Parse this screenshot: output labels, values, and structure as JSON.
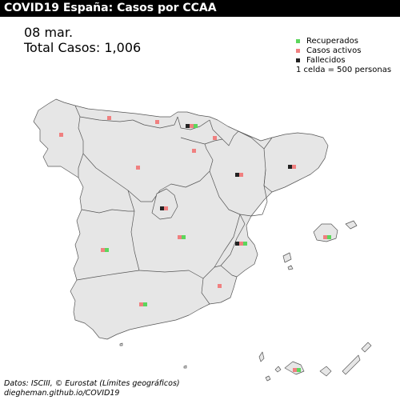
{
  "title": "COVID19 España: Casos por CCAA",
  "date": "08 mar.",
  "total": "Total Casos: 1,006",
  "legend": {
    "items": [
      {
        "label": "Recuperados",
        "color": "#5cd65c"
      },
      {
        "label": "Casos activos",
        "color": "#f08080"
      },
      {
        "label": "Fallecidos",
        "color": "#222222"
      }
    ],
    "note": "1 celda = 500 personas"
  },
  "credits": {
    "line1": "Datos: ISCIII, © Eurostat (Límites geográficos)",
    "line2": "diegheman.github.io/COVID19"
  },
  "map_style": {
    "fill": "#e6e6e6",
    "stroke": "#555555"
  },
  "regions": [
    {
      "name": "Galicia",
      "cells": [
        "active"
      ]
    },
    {
      "name": "Asturias",
      "cells": [
        "active"
      ]
    },
    {
      "name": "Cantabria",
      "cells": [
        "active"
      ]
    },
    {
      "name": "País Vasco",
      "cells": [
        "dead",
        "active",
        "recovered"
      ]
    },
    {
      "name": "Navarra",
      "cells": [
        "active"
      ]
    },
    {
      "name": "La Rioja",
      "cells": [
        "active"
      ]
    },
    {
      "name": "Castilla y León",
      "cells": [
        "active"
      ]
    },
    {
      "name": "Aragón",
      "cells": [
        "dead",
        "active"
      ]
    },
    {
      "name": "Cataluña",
      "cells": [
        "dead",
        "active"
      ]
    },
    {
      "name": "Madrid",
      "cells": [
        "dead",
        "active"
      ]
    },
    {
      "name": "Castilla-La Mancha",
      "cells": [
        "active",
        "recovered"
      ]
    },
    {
      "name": "Comunidad Valenciana",
      "cells": [
        "dead",
        "active",
        "recovered"
      ]
    },
    {
      "name": "Extremadura",
      "cells": [
        "active",
        "recovered"
      ]
    },
    {
      "name": "Murcia",
      "cells": [
        "active"
      ]
    },
    {
      "name": "Andalucía",
      "cells": [
        "active",
        "recovered"
      ]
    },
    {
      "name": "Islas Baleares",
      "cells": [
        "active",
        "recovered"
      ]
    },
    {
      "name": "Canarias",
      "cells": [
        "active",
        "recovered"
      ]
    }
  ]
}
